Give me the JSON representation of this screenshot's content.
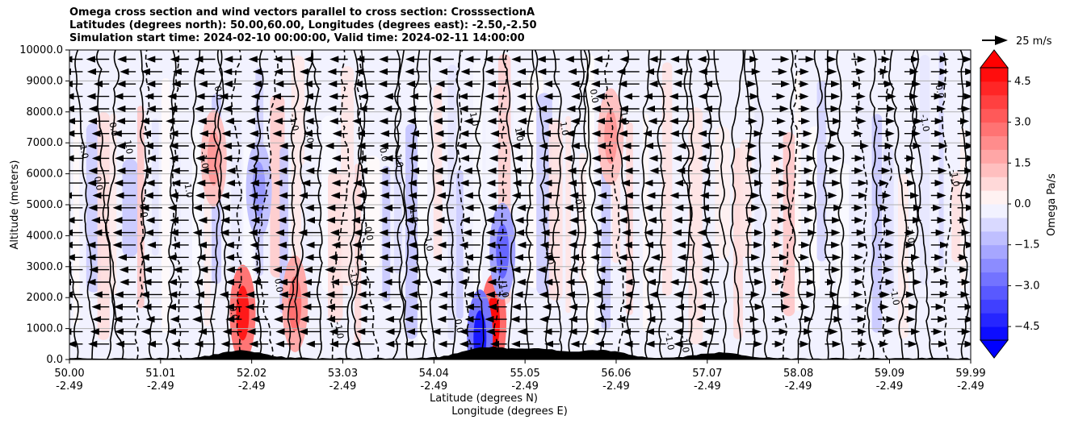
{
  "chart_data": {
    "type": "contour",
    "title_lines": [
      "Omega cross section and wind vectors parallel to cross section: CrosssectionA",
      "Latitudes (degrees north): 50.00,60.00, Longitudes (degrees east): -2.50,-2.50",
      "Simulation start time: 2024-02-10 00:00:00, Valid time: 2024-02-11 14:00:00"
    ],
    "ylabel": "Altitude (meters)",
    "xlabel_lat": "Latitude (degrees N)",
    "xlabel_lon": "Longitude (degrees E)",
    "ylim": [
      0,
      10000
    ],
    "yticks": [
      "0.0",
      "1000.0",
      "2000.0",
      "3000.0",
      "4000.0",
      "5000.0",
      "6000.0",
      "7000.0",
      "8000.0",
      "9000.0",
      "10000.0"
    ],
    "xlim": [
      50.0,
      59.99
    ],
    "xticks": [
      {
        "lat": "50.00",
        "lon": "-2.49",
        "v": 50.0
      },
      {
        "lat": "51.01",
        "lon": "-2.49",
        "v": 51.01
      },
      {
        "lat": "52.02",
        "lon": "-2.49",
        "v": 52.02
      },
      {
        "lat": "53.03",
        "lon": "-2.49",
        "v": 53.03
      },
      {
        "lat": "54.04",
        "lon": "-2.49",
        "v": 54.04
      },
      {
        "lat": "55.05",
        "lon": "-2.49",
        "v": 55.05
      },
      {
        "lat": "56.06",
        "lon": "-2.49",
        "v": 56.06
      },
      {
        "lat": "57.07",
        "lon": "-2.49",
        "v": 57.07
      },
      {
        "lat": "58.08",
        "lon": "-2.49",
        "v": 58.08
      },
      {
        "lat": "59.09",
        "lon": "-2.49",
        "v": 59.09
      },
      {
        "lat": "59.99",
        "lon": "-2.49",
        "v": 59.99
      }
    ],
    "grid": "horizontal",
    "colorbar": {
      "label": "Omega Pa/s",
      "range": [
        -5.0,
        5.0
      ],
      "ticks": [
        "4.5",
        "3.0",
        "1.5",
        "0.0",
        "−1.5",
        "−3.0",
        "−4.5"
      ],
      "cmap": "bwr",
      "extend": "both"
    },
    "quiver_key": {
      "label": "25 m/s"
    },
    "wind_direction_regions": [
      {
        "lat_range": [
          50.0,
          57.4
        ],
        "direction": "south"
      },
      {
        "lat_range": [
          57.4,
          59.99
        ],
        "direction": "north"
      }
    ],
    "omega_anomalies": [
      {
        "lat": 51.92,
        "alt": 1500,
        "value": 4.5
      },
      {
        "lat": 54.7,
        "alt": 1200,
        "value": 4.8
      },
      {
        "lat": 52.5,
        "alt": 1800,
        "value": 2.8
      },
      {
        "lat": 51.6,
        "alt": 6500,
        "value": 2.0
      },
      {
        "lat": 54.55,
        "alt": 700,
        "value": -4.5
      },
      {
        "lat": 54.8,
        "alt": 3500,
        "value": -3.0
      },
      {
        "lat": 52.1,
        "alt": 5500,
        "value": -2.0
      },
      {
        "lat": 56.0,
        "alt": 7200,
        "value": 2.0
      }
    ],
    "contour_labels": [
      "0.0",
      "1.0",
      "-1.0",
      "2.0",
      "3.0",
      "-3.0"
    ],
    "terrain_peaks": [
      {
        "lat": 51.9,
        "alt": 250
      },
      {
        "lat": 54.6,
        "alt": 350
      },
      {
        "lat": 55.2,
        "alt": 300
      },
      {
        "lat": 55.9,
        "alt": 260
      },
      {
        "lat": 57.2,
        "alt": 180
      }
    ]
  }
}
